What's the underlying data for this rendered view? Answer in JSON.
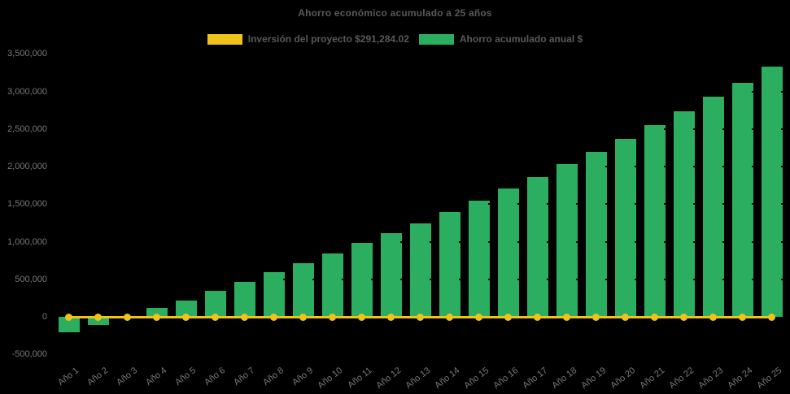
{
  "title": "Ahorro económico acumulado a 25 años",
  "legend": [
    {
      "label": "Inversión del proyecto $291,284.02",
      "color": "#EFC319"
    },
    {
      "label": "Ahorro acumulado anual $",
      "color": "#2BAE5F"
    }
  ],
  "colors": {
    "background": "#000000",
    "bar_green": "#2BAE5F",
    "line_yellow": "#EFC319",
    "title_text": "#595959",
    "axis_text": "#787878"
  },
  "chart_data": {
    "type": "bar",
    "title": "Ahorro económico acumulado a 25 años",
    "categories": [
      "Año 1",
      "Año 2",
      "Año 3",
      "Año 4",
      "Año 5",
      "Año 6",
      "Año 7",
      "Año 8",
      "Año 9",
      "Año 10",
      "Año 11",
      "Año 12",
      "Año 13",
      "Año 14",
      "Año 15",
      "Año 16",
      "Año 17",
      "Año 18",
      "Año 19",
      "Año 20",
      "Año 21",
      "Año 22",
      "Año 23",
      "Año 24",
      "Año 25"
    ],
    "series": [
      {
        "name": "Inversión del proyecto $291,284.02",
        "type": "line",
        "color": "#EFC319",
        "marker": "circle",
        "values": [
          0,
          0,
          0,
          0,
          0,
          0,
          0,
          0,
          0,
          0,
          0,
          0,
          0,
          0,
          0,
          0,
          0,
          0,
          0,
          0,
          0,
          0,
          0,
          0,
          0
        ]
      },
      {
        "name": "Ahorro acumulado anual $",
        "type": "bar",
        "color": "#2BAE5F",
        "values": [
          -205000,
          -105000,
          5000,
          120000,
          220000,
          345000,
          470000,
          590000,
          710000,
          840000,
          980000,
          1110000,
          1245000,
          1400000,
          1550000,
          1705000,
          1855000,
          2030000,
          2190000,
          2370000,
          2550000,
          2735000,
          2930000,
          3115000,
          3330000
        ]
      }
    ],
    "investment_amount": 291284.02,
    "xlabel": "",
    "ylabel": "",
    "ylim": [
      -500000,
      3500000
    ],
    "ytick_step": 500000,
    "grid": "horizontal-dark",
    "legend_position": "top-center",
    "x_tick_rotation": -38
  }
}
